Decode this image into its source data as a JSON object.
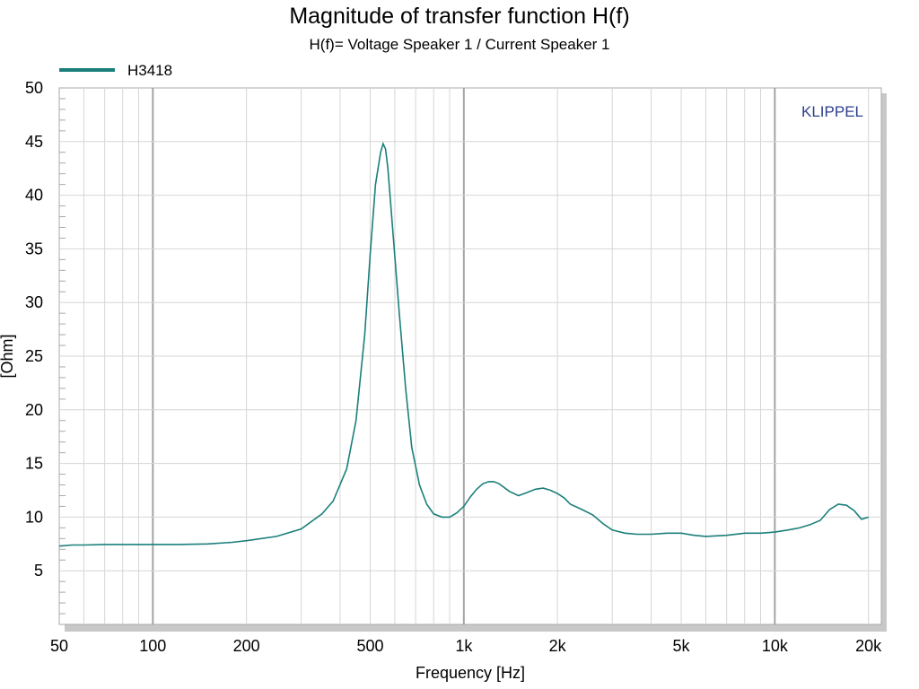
{
  "chart_data": {
    "type": "line",
    "title": "Magnitude of transfer function H(f)",
    "subtitle": "H(f)= Voltage Speaker 1 / Current Speaker 1",
    "xlabel": "Frequency [Hz]",
    "ylabel": "[Ohm]",
    "xscale": "log",
    "xlim": [
      50,
      22000
    ],
    "ylim": [
      0,
      50
    ],
    "xticks": [
      {
        "value": 50,
        "label": "50"
      },
      {
        "value": 100,
        "label": "100"
      },
      {
        "value": 200,
        "label": "200"
      },
      {
        "value": 500,
        "label": "500"
      },
      {
        "value": 1000,
        "label": "1k"
      },
      {
        "value": 2000,
        "label": "2k"
      },
      {
        "value": 5000,
        "label": "5k"
      },
      {
        "value": 10000,
        "label": "10k"
      },
      {
        "value": 20000,
        "label": "20k"
      }
    ],
    "yticks": [
      {
        "value": 5,
        "label": "5"
      },
      {
        "value": 10,
        "label": "10"
      },
      {
        "value": 15,
        "label": "15"
      },
      {
        "value": 20,
        "label": "20"
      },
      {
        "value": 25,
        "label": "25"
      },
      {
        "value": 30,
        "label": "30"
      },
      {
        "value": 35,
        "label": "35"
      },
      {
        "value": 40,
        "label": "40"
      },
      {
        "value": 45,
        "label": "45"
      },
      {
        "value": 50,
        "label": "50"
      }
    ],
    "grid": true,
    "legend_position": "top-left",
    "brand": "KLIPPEL",
    "series": [
      {
        "name": "H3418",
        "color": "#1a7f7a",
        "x": [
          50,
          55,
          60,
          70,
          80,
          100,
          120,
          150,
          180,
          200,
          250,
          300,
          350,
          380,
          420,
          450,
          480,
          500,
          520,
          540,
          550,
          560,
          570,
          590,
          620,
          650,
          680,
          720,
          760,
          800,
          850,
          900,
          950,
          1000,
          1050,
          1100,
          1150,
          1200,
          1250,
          1300,
          1400,
          1500,
          1600,
          1700,
          1800,
          1900,
          2000,
          2100,
          2200,
          2400,
          2600,
          2800,
          3000,
          3300,
          3600,
          4000,
          4500,
          5000,
          5500,
          6000,
          7000,
          8000,
          9000,
          10000,
          11000,
          12000,
          13000,
          14000,
          15000,
          16000,
          17000,
          18000,
          19000,
          20000
        ],
        "values": [
          7.3,
          7.4,
          7.4,
          7.45,
          7.45,
          7.45,
          7.45,
          7.5,
          7.65,
          7.8,
          8.2,
          8.9,
          10.3,
          11.5,
          14.5,
          19.0,
          27.0,
          34.5,
          41.0,
          44.0,
          44.8,
          44.3,
          42.5,
          37.0,
          29.0,
          22.0,
          16.5,
          13.0,
          11.2,
          10.3,
          10.0,
          10.0,
          10.4,
          11.0,
          11.9,
          12.6,
          13.1,
          13.3,
          13.3,
          13.1,
          12.4,
          12.0,
          12.3,
          12.6,
          12.7,
          12.5,
          12.2,
          11.8,
          11.2,
          10.7,
          10.2,
          9.4,
          8.8,
          8.5,
          8.4,
          8.4,
          8.5,
          8.5,
          8.3,
          8.2,
          8.3,
          8.5,
          8.5,
          8.6,
          8.8,
          9.0,
          9.3,
          9.7,
          10.7,
          11.2,
          11.1,
          10.6,
          9.8,
          10.0
        ]
      }
    ]
  }
}
